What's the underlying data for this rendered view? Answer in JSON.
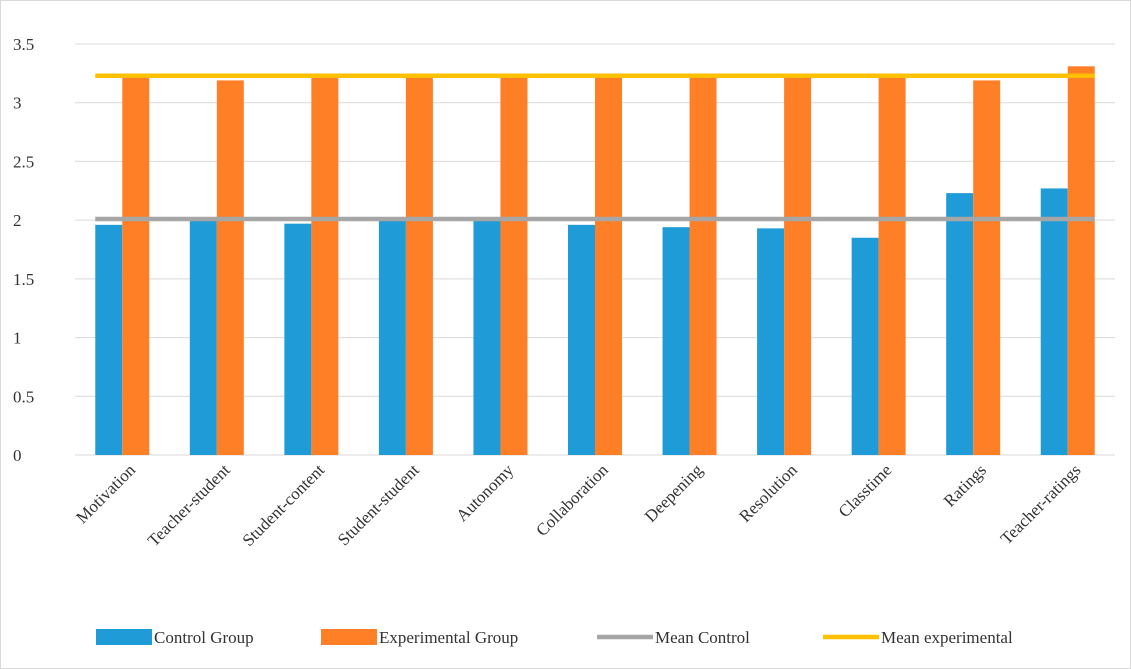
{
  "chart_data": {
    "type": "bar",
    "title": "",
    "xlabel": "",
    "ylabel": "",
    "ylim": [
      0,
      3.5
    ],
    "y_ticks": [
      0,
      0.5,
      1,
      1.5,
      2,
      2.5,
      3,
      3.5
    ],
    "y_tick_labels": [
      "0",
      "0.5",
      "1",
      "1.5",
      "2",
      "2.5",
      "3",
      "3.5"
    ],
    "grid": true,
    "legend_position": "bottom",
    "categories": [
      "Motivation",
      "Teacher-student",
      "Student-content",
      "Student-student",
      "Autonomy",
      "Collaboration",
      "Deepening",
      "Resolution",
      "Classtime",
      "Ratings",
      "Teacher-ratings"
    ],
    "series": [
      {
        "name": "Control Group",
        "kind": "bar",
        "color": "#1f9bd7",
        "values": [
          1.96,
          2.0,
          1.97,
          2.0,
          2.0,
          1.96,
          1.94,
          1.93,
          1.85,
          2.23,
          2.27
        ]
      },
      {
        "name": "Experimental Group",
        "kind": "bar",
        "color": "#ff7f27",
        "values": [
          3.22,
          3.19,
          3.22,
          3.23,
          3.22,
          3.22,
          3.22,
          3.23,
          3.22,
          3.19,
          3.31
        ]
      },
      {
        "name": "Mean Control",
        "kind": "line",
        "color": "#a6a6a6",
        "value": 2.01
      },
      {
        "name": "Mean experimental",
        "kind": "line",
        "color": "#ffc000",
        "value": 3.23
      }
    ]
  }
}
